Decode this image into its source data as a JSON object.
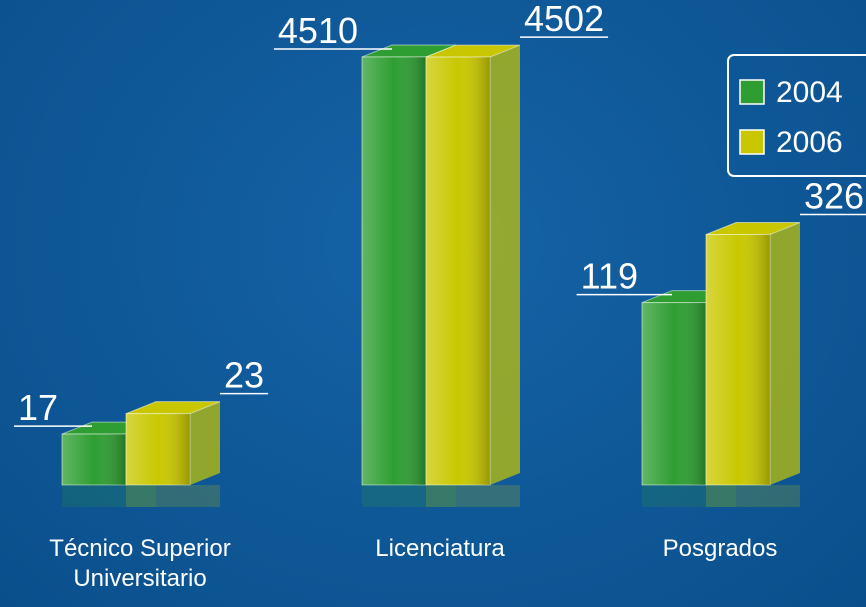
{
  "chart_data": {
    "type": "bar",
    "categories": [
      "Técnico Superior Universitario",
      "Licenciatura",
      "Posgrados"
    ],
    "series": [
      {
        "name": "2004",
        "color": "#2e9e32",
        "values": [
          17,
          4510,
          119
        ]
      },
      {
        "name": "2006",
        "color": "#c9c800",
        "values": [
          23,
          4502,
          326
        ]
      }
    ],
    "log_scale": true,
    "ylim": [
      8,
      5000
    ],
    "legend": "top-right"
  }
}
